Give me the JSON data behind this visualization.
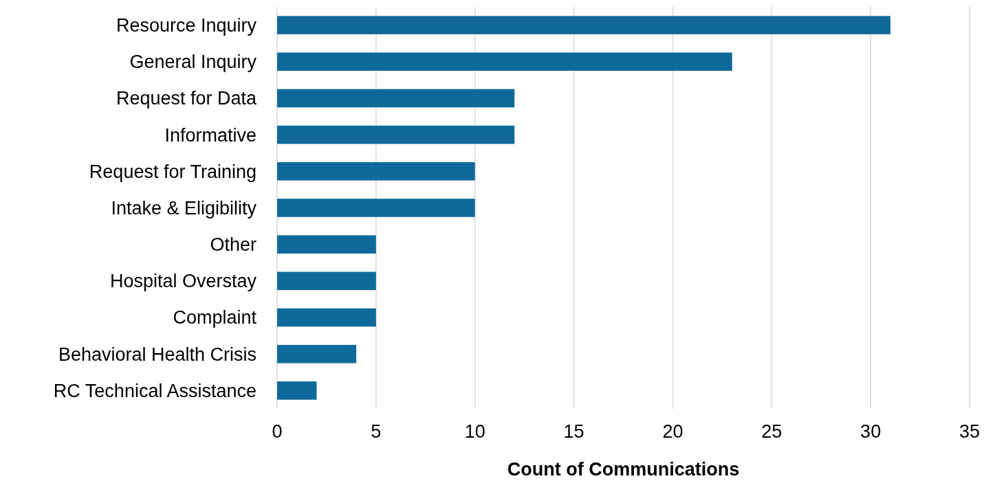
{
  "chart_data": {
    "type": "bar",
    "orientation": "horizontal",
    "xlabel": "Count of Communications",
    "categories": [
      "Resource Inquiry",
      "General Inquiry",
      "Request for Data",
      "Informative",
      "Request for Training",
      "Intake & Eligibility",
      "Other",
      "Hospital Overstay",
      "Complaint",
      "Behavioral Health Crisis",
      "RC Technical Assistance"
    ],
    "values": [
      31,
      23,
      12,
      12,
      10,
      10,
      5,
      5,
      5,
      4,
      2
    ],
    "color": "#0f6a9b",
    "xlim": [
      0,
      35
    ],
    "xticks": [
      0,
      5,
      10,
      15,
      20,
      25,
      30,
      35
    ],
    "grid": "x"
  }
}
